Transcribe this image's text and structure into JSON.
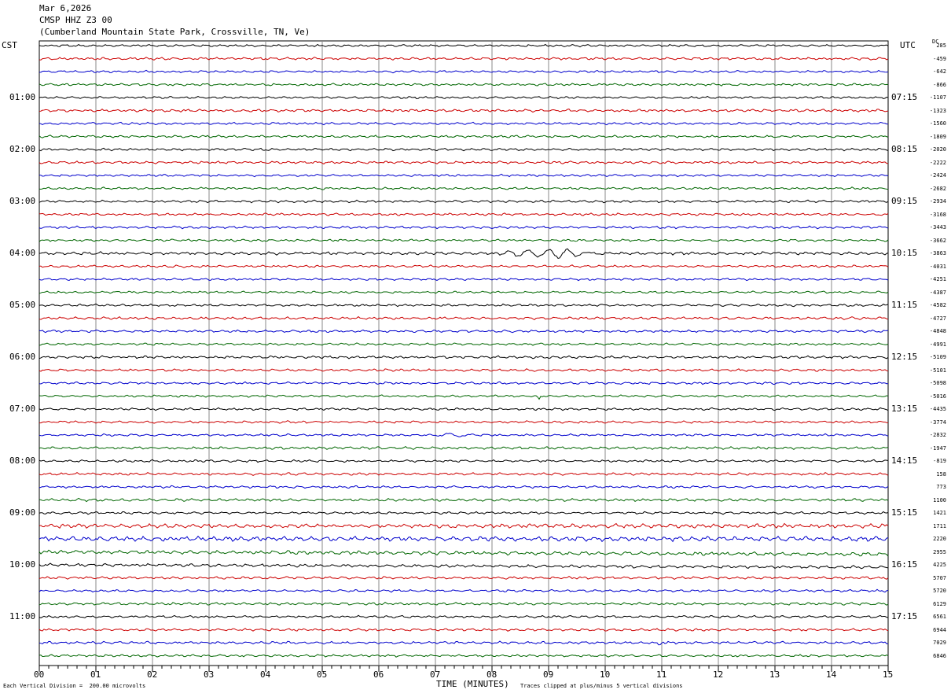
{
  "header": {
    "date": "Mar 6,2026",
    "station": "CMSP HHZ Z3 00",
    "location": "(Cumberland Mountain State Park, Crossville, TN, Ve)"
  },
  "left_timezone": "CST",
  "right_timezone": "UTC",
  "dc_label": "DC",
  "footer": {
    "scale_note": "Each Vertical Division =  200.00 microvolts",
    "xlabel": "TIME (MINUTES)",
    "clip_note": "Traces clipped at plus/minus 5 vertical divisions"
  },
  "colors": [
    "#000000",
    "#cc0000",
    "#0000cc",
    "#006600"
  ],
  "chart_data": {
    "type": "line",
    "description_kind": "helicorder",
    "x": [
      0,
      1,
      2,
      3,
      4,
      5,
      6,
      7,
      8,
      9,
      10,
      11,
      12,
      13,
      14,
      15
    ],
    "x_tick_labels": [
      "00",
      "01",
      "02",
      "03",
      "04",
      "05",
      "06",
      "07",
      "08",
      "09",
      "10",
      "11",
      "12",
      "13",
      "14",
      "15"
    ],
    "xlim": [
      0,
      15
    ],
    "xlabel": "TIME (MINUTES)",
    "grid": true,
    "left_hour_labels": [
      "01:00",
      "02:00",
      "03:00",
      "04:00",
      "05:00",
      "06:00",
      "07:00",
      "08:00",
      "09:00",
      "10:00",
      "11:00"
    ],
    "right_hour_labels": [
      "07:15",
      "08:15",
      "09:15",
      "10:15",
      "11:15",
      "12:15",
      "13:15",
      "14:15",
      "15:15",
      "16:15",
      "17:15"
    ],
    "dc_offsets": [
      "285",
      "-459",
      "-642",
      "-866",
      "-1107",
      "-1323",
      "-1560",
      "-1809",
      "-2020",
      "-2222",
      "-2424",
      "-2682",
      "-2934",
      "-3168",
      "-3443",
      "-3662",
      "-3863",
      "-4031",
      "-4251",
      "-4387",
      "-4582",
      "-4727",
      "-4848",
      "-4991",
      "-5109",
      "-5101",
      "-5098",
      "-5016",
      "-4435",
      "-3774",
      "-2832",
      "-1947",
      "-819",
      "158",
      "773",
      "1100",
      "1421",
      "1711",
      "2220",
      "2955",
      "4225",
      "5707",
      "5720",
      "6129",
      "6561",
      "6944",
      "7029",
      "6846"
    ],
    "traces_per_hour": 4,
    "minutes_per_trace": 15,
    "noise_levels": [
      1.2,
      1.4,
      1.2,
      1.3,
      1.2,
      1.5,
      1.3,
      1.3,
      1.3,
      1.4,
      1.2,
      1.3,
      1.3,
      1.3,
      1.3,
      1.3,
      1.6,
      1.3,
      1.2,
      1.2,
      1.3,
      1.4,
      1.3,
      1.2,
      1.4,
      1.3,
      1.3,
      1.2,
      1.3,
      1.3,
      1.2,
      1.4,
      1.3,
      1.4,
      1.3,
      1.5,
      1.3,
      2.2,
      2.6,
      2.0,
      1.6,
      1.4,
      1.3,
      1.4,
      1.3,
      1.4,
      1.4,
      1.3
    ],
    "events": [
      {
        "trace": 16,
        "start_min": 8.0,
        "end_min": 10.0,
        "amplitude": 5
      },
      {
        "trace": 30,
        "start_min": 7.0,
        "end_min": 7.6,
        "amplitude": 3
      },
      {
        "trace": 27,
        "start_min": 8.8,
        "end_min": 8.85,
        "amplitude": 6
      },
      {
        "trace": 46,
        "start_min": 10.9,
        "end_min": 11.05,
        "amplitude": 4
      }
    ]
  }
}
